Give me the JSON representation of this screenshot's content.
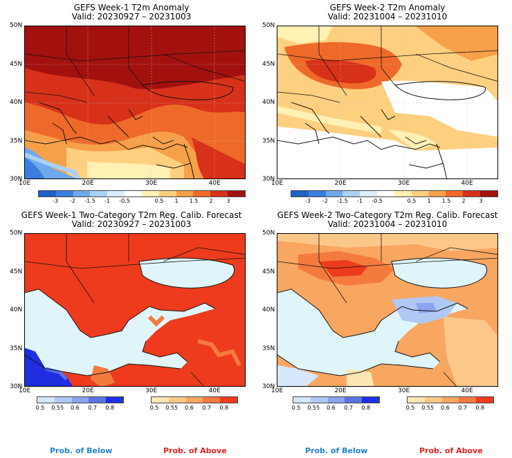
{
  "panels": [
    {
      "title": "GEFS Week-1 T2m Anomaly",
      "valid": "Valid: 20230927 – 20231003"
    },
    {
      "title": "GEFS Week-2 T2m Anomaly",
      "valid": "Valid: 20231004 – 20231010"
    },
    {
      "title": "GEFS Week-1 Two-Category T2m Reg. Calib. Forecast",
      "valid": "Valid: 20230927 – 20231003"
    },
    {
      "title": "GEFS Week-2 Two-Category T2m Reg. Calib. Forecast",
      "valid": "Valid: 20231004 – 20231010"
    }
  ],
  "lat_labels": [
    "50N",
    "45N",
    "40N",
    "35N",
    "30N"
  ],
  "lon_labels": [
    "10E",
    "20E",
    "30E",
    "40E"
  ],
  "anomaly_colorbar": {
    "labels": [
      "-3",
      "-2",
      "-1.5",
      "-1",
      "-0.5",
      "0.5",
      "1",
      "1.5",
      "2",
      "3"
    ],
    "colors": [
      "#1f5fc8",
      "#3a7fe0",
      "#6ea9ec",
      "#a9d0f5",
      "#d9ecfb",
      "#ffffff",
      "#fff0b3",
      "#fdd080",
      "#f7a04a",
      "#ef6a2a",
      "#d8311a",
      "#a3110f"
    ]
  },
  "below_colorbar": {
    "labels": [
      "0.5",
      "0.55",
      "0.6",
      "0.7",
      "0.8"
    ],
    "colors": [
      "#d6e6fb",
      "#b0c8f4",
      "#8aa4ee",
      "#5a73e6",
      "#1f2fe0"
    ]
  },
  "above_colorbar": {
    "labels": [
      "0.5",
      "0.55",
      "0.6",
      "0.7",
      "0.8"
    ],
    "colors": [
      "#fde6b2",
      "#fcc88a",
      "#f9a661",
      "#f47a3e",
      "#ee3b1d"
    ]
  },
  "prob_below_label": "Prob. of Below",
  "prob_above_label": "Prob. of Above",
  "colors": {
    "sea_light_blue": "#dff5fa",
    "prob_below_text": "#1f7fd8",
    "prob_above_text": "#e01f1f"
  }
}
